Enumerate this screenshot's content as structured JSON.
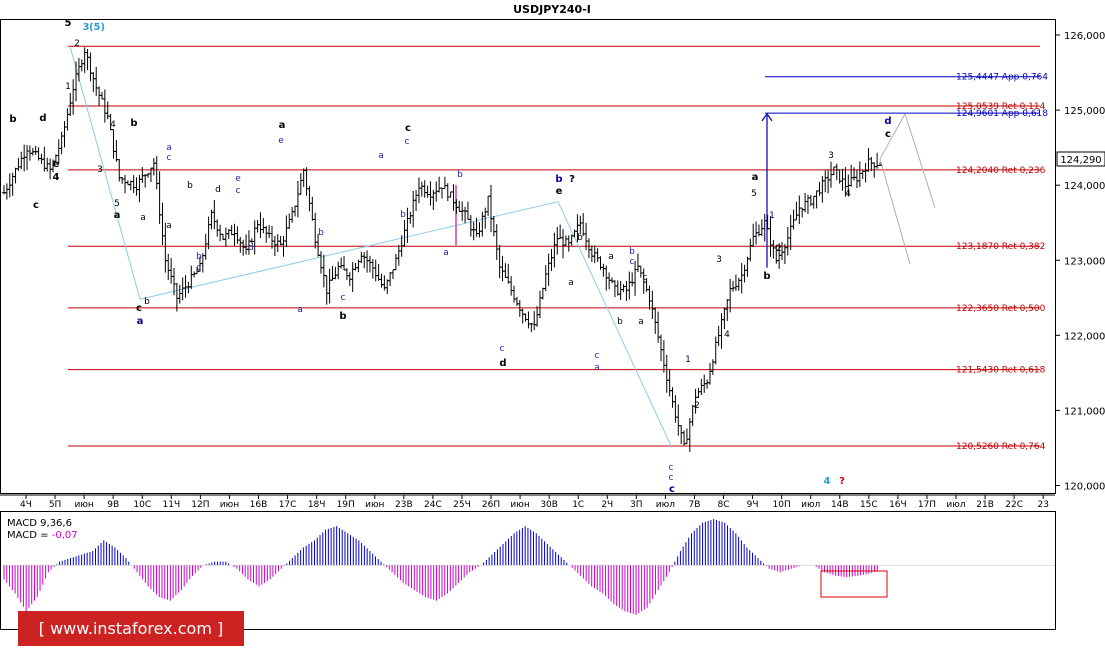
{
  "chart_data": {
    "type": "candlestick",
    "title": "USDJPY240-I",
    "current_price": "124,290",
    "y_ticks": [
      "126,000",
      "125,000",
      "124,000",
      "123,000",
      "122,000",
      "121,000",
      "120,000"
    ],
    "ylim": [
      119.9,
      126.2
    ],
    "x_ticks": [
      "4Ч",
      "5П",
      "июн",
      "9В",
      "10С",
      "11Ч",
      "12П",
      "июн",
      "16В",
      "17С",
      "18Ч",
      "19П",
      "июн",
      "23В",
      "24С",
      "25Ч",
      "26П",
      "июн",
      "30В",
      "1С",
      "2Ч",
      "3П",
      "июл",
      "7В",
      "8С",
      "9Ч",
      "10П",
      "июл",
      "14В",
      "15С",
      "16Ч",
      "17П",
      "июл",
      "21В",
      "22С",
      "23"
    ],
    "levels": [
      {
        "price": 125.85,
        "label": "",
        "color": "#c00000"
      },
      {
        "price": 125.0539,
        "label": "125,0539 Ret 0,114",
        "color": "#c00000"
      },
      {
        "price": 124.204,
        "label": "124,2040 Ret 0,236",
        "color": "#c00000"
      },
      {
        "price": 123.187,
        "label": "123,1870 Ret 0,382",
        "color": "#c00000"
      },
      {
        "price": 122.365,
        "label": "122,3650 Ret 0,500",
        "color": "#c00000"
      },
      {
        "price": 121.543,
        "label": "121,5430 Ret 0,618",
        "color": "#c00000"
      },
      {
        "price": 120.526,
        "label": "120,5260 Ret 0,764",
        "color": "#c00000"
      },
      {
        "price": 125.4447,
        "label": "125,4447 App 0,764",
        "color": "#0000c0"
      },
      {
        "price": 124.9601,
        "label": "124,9601 App 0,618",
        "color": "#0000c0"
      }
    ],
    "close_path": [
      [
        0,
        123.9
      ],
      [
        4,
        124.5
      ],
      [
        8,
        124.2
      ],
      [
        10,
        124.6
      ],
      [
        12,
        125.3
      ],
      [
        14,
        125.8
      ],
      [
        16,
        125.3
      ],
      [
        18,
        124.9
      ],
      [
        20,
        124.1
      ],
      [
        23,
        124.0
      ],
      [
        26,
        124.3
      ],
      [
        28,
        123.0
      ],
      [
        30,
        122.5
      ],
      [
        34,
        122.9
      ],
      [
        36,
        123.6
      ],
      [
        38,
        123.3
      ],
      [
        40,
        123.4
      ],
      [
        42,
        123.1
      ],
      [
        44,
        123.5
      ],
      [
        46,
        123.3
      ],
      [
        48,
        123.2
      ],
      [
        50,
        123.6
      ],
      [
        52,
        124.2
      ],
      [
        54,
        123.3
      ],
      [
        56,
        122.6
      ],
      [
        58,
        122.9
      ],
      [
        60,
        122.8
      ],
      [
        62,
        123.1
      ],
      [
        64,
        122.9
      ],
      [
        66,
        122.6
      ],
      [
        68,
        123.0
      ],
      [
        70,
        123.5
      ],
      [
        72,
        124.0
      ],
      [
        74,
        123.9
      ],
      [
        76,
        124.0
      ],
      [
        78,
        123.8
      ],
      [
        80,
        123.6
      ],
      [
        82,
        123.3
      ],
      [
        84,
        123.8
      ],
      [
        86,
        122.9
      ],
      [
        88,
        122.6
      ],
      [
        90,
        122.3
      ],
      [
        92,
        122.1
      ],
      [
        94,
        122.8
      ],
      [
        96,
        123.3
      ],
      [
        98,
        123.2
      ],
      [
        100,
        123.5
      ],
      [
        102,
        123.1
      ],
      [
        104,
        122.9
      ],
      [
        106,
        122.6
      ],
      [
        108,
        122.6
      ],
      [
        110,
        122.9
      ],
      [
        112,
        122.5
      ],
      [
        114,
        121.8
      ],
      [
        116,
        121.1
      ],
      [
        118,
        120.5
      ],
      [
        120,
        121.2
      ],
      [
        122,
        121.4
      ],
      [
        124,
        122.0
      ],
      [
        126,
        122.6
      ],
      [
        128,
        122.8
      ],
      [
        130,
        123.3
      ],
      [
        132,
        123.5
      ],
      [
        134,
        123.0
      ],
      [
        136,
        123.3
      ],
      [
        138,
        123.7
      ],
      [
        140,
        123.8
      ],
      [
        142,
        124.0
      ],
      [
        144,
        124.2
      ],
      [
        146,
        124.0
      ],
      [
        148,
        124.1
      ],
      [
        150,
        124.3
      ],
      [
        152,
        124.29
      ]
    ],
    "candle_x_max": 152,
    "macd": {
      "label": "MACD 9,36,6",
      "value_label": "MACD = ",
      "value": "-0,07",
      "ylim": [
        -0.9,
        0.75
      ],
      "histogram": [
        -0.2,
        -0.4,
        -0.65,
        -0.45,
        -0.1,
        0.05,
        0.1,
        0.15,
        0.2,
        0.35,
        0.25,
        0.1,
        -0.1,
        -0.3,
        -0.45,
        -0.5,
        -0.35,
        -0.15,
        0.0,
        0.05,
        0.05,
        -0.05,
        -0.2,
        -0.3,
        -0.2,
        -0.05,
        0.1,
        0.25,
        0.35,
        0.5,
        0.55,
        0.45,
        0.35,
        0.2,
        0.05,
        -0.1,
        -0.25,
        -0.35,
        -0.45,
        -0.5,
        -0.4,
        -0.25,
        -0.1,
        0.0,
        0.15,
        0.3,
        0.45,
        0.55,
        0.45,
        0.3,
        0.15,
        0.0,
        -0.15,
        -0.3,
        -0.4,
        -0.55,
        -0.65,
        -0.7,
        -0.6,
        -0.35,
        -0.1,
        0.2,
        0.45,
        0.6,
        0.65,
        0.6,
        0.45,
        0.25,
        0.1,
        -0.05,
        -0.1,
        -0.05,
        0.0,
        0.0,
        -0.1,
        -0.15,
        -0.17,
        -0.15,
        -0.12,
        -0.07
      ]
    },
    "watermark": "www.instaforex.com"
  },
  "wave_labels": [
    {
      "text": "5",
      "x": 68,
      "y": 26,
      "color": "#000",
      "cls": "wave"
    },
    {
      "text": "3",
      "x": 86,
      "y": 30,
      "color": "#2f9fd0",
      "cls": "wave"
    },
    {
      "text": "(5)",
      "x": 97,
      "y": 30,
      "color": "#2f9fd0",
      "cls": "wave"
    },
    {
      "text": "2",
      "x": 77,
      "y": 46,
      "color": "#000",
      "cls": "wave-n"
    },
    {
      "text": "1",
      "x": 68,
      "y": 89,
      "color": "#000",
      "cls": "wave-n"
    },
    {
      "text": "b",
      "x": 13,
      "y": 122,
      "color": "#000",
      "cls": "wave"
    },
    {
      "text": "d",
      "x": 43,
      "y": 121,
      "color": "#000",
      "cls": "wave"
    },
    {
      "text": "e",
      "x": 56,
      "y": 167,
      "color": "#000",
      "cls": "wave"
    },
    {
      "text": "4",
      "x": 56,
      "y": 180,
      "color": "#000",
      "cls": "wave"
    },
    {
      "text": "c",
      "x": 36,
      "y": 208,
      "color": "#000",
      "cls": "wave"
    },
    {
      "text": "4",
      "x": 113,
      "y": 127,
      "color": "#000",
      "cls": "wave-n"
    },
    {
      "text": "b",
      "x": 134,
      "y": 126,
      "color": "#000",
      "cls": "wave"
    },
    {
      "text": "3",
      "x": 100,
      "y": 172,
      "color": "#000",
      "cls": "wave-n"
    },
    {
      "text": "5",
      "x": 117,
      "y": 206,
      "color": "#000",
      "cls": "wave-n"
    },
    {
      "text": "a",
      "x": 117,
      "y": 218,
      "color": "#000",
      "cls": "wave"
    },
    {
      "text": "a",
      "x": 143,
      "y": 220,
      "color": "#000",
      "cls": "wave-n"
    },
    {
      "text": "c",
      "x": 139,
      "y": 311,
      "color": "#000",
      "cls": "wave"
    },
    {
      "text": "b",
      "x": 147,
      "y": 304,
      "color": "#000",
      "cls": "wave-n"
    },
    {
      "text": "a",
      "x": 140,
      "y": 324,
      "color": "#00008b",
      "cls": "wave"
    },
    {
      "text": "a",
      "x": 169,
      "y": 150,
      "color": "#2222aa",
      "cls": "wave-n"
    },
    {
      "text": "c",
      "x": 169,
      "y": 160,
      "color": "#2222aa",
      "cls": "wave-n"
    },
    {
      "text": "a",
      "x": 169,
      "y": 228,
      "color": "#000",
      "cls": "wave-n"
    },
    {
      "text": "b",
      "x": 190,
      "y": 188,
      "color": "#000",
      "cls": "wave-n"
    },
    {
      "text": "b",
      "x": 199,
      "y": 259,
      "color": "#2222aa",
      "cls": "wave-n"
    },
    {
      "text": "c",
      "x": 199,
      "y": 270,
      "color": "#2222aa",
      "cls": "wave-n"
    },
    {
      "text": "d",
      "x": 218,
      "y": 192,
      "color": "#000",
      "cls": "wave-n"
    },
    {
      "text": "e",
      "x": 238,
      "y": 181,
      "color": "#2222aa",
      "cls": "wave-n"
    },
    {
      "text": "c",
      "x": 238,
      "y": 193,
      "color": "#2222aa",
      "cls": "wave-n"
    },
    {
      "text": "d",
      "x": 251,
      "y": 250,
      "color": "#2222aa",
      "cls": "wave-n"
    },
    {
      "text": "a",
      "x": 282,
      "y": 128,
      "color": "#000",
      "cls": "wave"
    },
    {
      "text": "e",
      "x": 281,
      "y": 143,
      "color": "#2222aa",
      "cls": "wave-n"
    },
    {
      "text": "a",
      "x": 300,
      "y": 312,
      "color": "#2222aa",
      "cls": "wave-n"
    },
    {
      "text": "b",
      "x": 321,
      "y": 235,
      "color": "#2222aa",
      "cls": "wave-n"
    },
    {
      "text": "c",
      "x": 343,
      "y": 300,
      "color": "#2222aa",
      "cls": "wave-n"
    },
    {
      "text": "b",
      "x": 343,
      "y": 319,
      "color": "#000",
      "cls": "wave"
    },
    {
      "text": "a",
      "x": 381,
      "y": 158,
      "color": "#2222aa",
      "cls": "wave-n"
    },
    {
      "text": "c",
      "x": 408,
      "y": 131,
      "color": "#000",
      "cls": "wave"
    },
    {
      "text": "c",
      "x": 407,
      "y": 144,
      "color": "#2222aa",
      "cls": "wave-n"
    },
    {
      "text": "b",
      "x": 403,
      "y": 217,
      "color": "#2222aa",
      "cls": "wave-n"
    },
    {
      "text": "b",
      "x": 460,
      "y": 177,
      "color": "#2222aa",
      "cls": "wave-n"
    },
    {
      "text": "a",
      "x": 446,
      "y": 255,
      "color": "#2222aa",
      "cls": "wave-n"
    },
    {
      "text": "c",
      "x": 502,
      "y": 351,
      "color": "#2222aa",
      "cls": "wave-n"
    },
    {
      "text": "d",
      "x": 503,
      "y": 366,
      "color": "#000",
      "cls": "wave"
    },
    {
      "text": "b",
      "x": 559,
      "y": 182,
      "color": "#0000a0",
      "cls": "wave"
    },
    {
      "text": "?",
      "x": 572,
      "y": 182,
      "color": "#000",
      "cls": "wave"
    },
    {
      "text": "e",
      "x": 559,
      "y": 194,
      "color": "#000",
      "cls": "wave"
    },
    {
      "text": "b",
      "x": 580,
      "y": 240,
      "color": "#000",
      "cls": "wave-n"
    },
    {
      "text": "a",
      "x": 571,
      "y": 285,
      "color": "#000",
      "cls": "wave-n"
    },
    {
      "text": "a",
      "x": 611,
      "y": 259,
      "color": "#000",
      "cls": "wave-n"
    },
    {
      "text": "b",
      "x": 632,
      "y": 254,
      "color": "#2222aa",
      "cls": "wave-n"
    },
    {
      "text": "c",
      "x": 632,
      "y": 264,
      "color": "#2222aa",
      "cls": "wave-n"
    },
    {
      "text": "c",
      "x": 645,
      "y": 280,
      "color": "#000",
      "cls": "wave-n"
    },
    {
      "text": "b",
      "x": 620,
      "y": 324,
      "color": "#000",
      "cls": "wave-n"
    },
    {
      "text": "a",
      "x": 641,
      "y": 324,
      "color": "#000",
      "cls": "wave-n"
    },
    {
      "text": "c",
      "x": 597,
      "y": 358,
      "color": "#2222aa",
      "cls": "wave-n"
    },
    {
      "text": "a",
      "x": 597,
      "y": 370,
      "color": "#2222aa",
      "cls": "wave-n"
    },
    {
      "text": "c",
      "x": 671,
      "y": 470,
      "color": "#2222aa",
      "cls": "wave-n"
    },
    {
      "text": "c",
      "x": 671,
      "y": 480,
      "color": "#2222aa",
      "cls": "wave-n"
    },
    {
      "text": "c",
      "x": 672,
      "y": 492,
      "color": "#0000a0",
      "cls": "wave"
    },
    {
      "text": "1",
      "x": 688,
      "y": 362,
      "color": "#000080",
      "cls": "wave-n"
    },
    {
      "text": "2",
      "x": 697,
      "y": 408,
      "color": "#000",
      "cls": "wave-n"
    },
    {
      "text": "3",
      "x": 719,
      "y": 262,
      "color": "#000",
      "cls": "wave-n"
    },
    {
      "text": "4",
      "x": 727,
      "y": 337,
      "color": "#000",
      "cls": "wave-n"
    },
    {
      "text": "a",
      "x": 755,
      "y": 180,
      "color": "#000",
      "cls": "wave"
    },
    {
      "text": "5",
      "x": 754,
      "y": 196,
      "color": "#000",
      "cls": "wave-n"
    },
    {
      "text": "1",
      "x": 772,
      "y": 218,
      "color": "#000080",
      "cls": "wave-n"
    },
    {
      "text": "2",
      "x": 779,
      "y": 251,
      "color": "#000",
      "cls": "wave-n"
    },
    {
      "text": "b",
      "x": 767,
      "y": 279,
      "color": "#000",
      "cls": "wave"
    },
    {
      "text": "3",
      "x": 831,
      "y": 158,
      "color": "#000",
      "cls": "wave-n"
    },
    {
      "text": "4",
      "x": 848,
      "y": 196,
      "color": "#000",
      "cls": "wave-n"
    },
    {
      "text": "d",
      "x": 888,
      "y": 124,
      "color": "#0000a0",
      "cls": "wave"
    },
    {
      "text": "c",
      "x": 888,
      "y": 137,
      "color": "#000",
      "cls": "wave"
    },
    {
      "text": "4",
      "x": 827,
      "y": 484,
      "color": "#2f9fd0",
      "cls": "wave"
    },
    {
      "text": "?",
      "x": 842,
      "y": 484,
      "color": "#e00000",
      "cls": "wave"
    }
  ]
}
